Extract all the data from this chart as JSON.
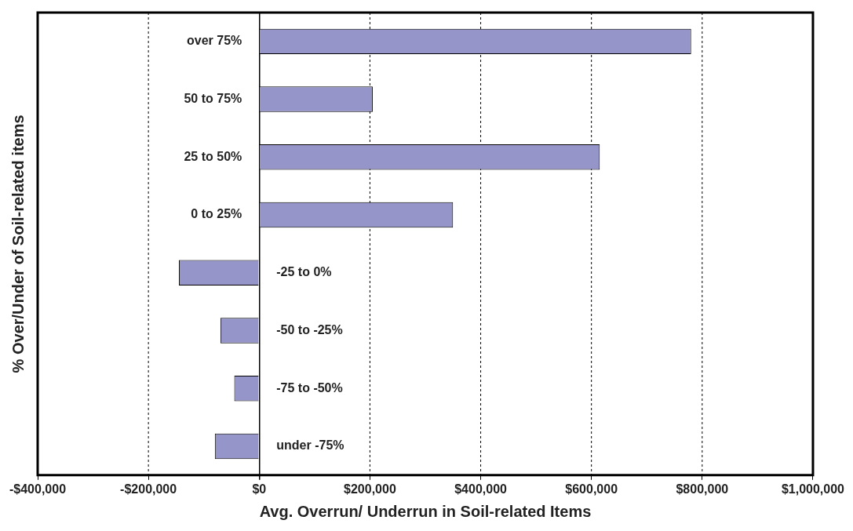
{
  "chart_data": {
    "type": "bar",
    "orientation": "horizontal",
    "xlabel": "Avg. Overrun/ Underrun in Soil-related Items",
    "ylabel": "% Over/Under of Soil-related items",
    "categories": [
      "over 75%",
      "50 to 75%",
      "25 to 50%",
      "0 to 25%",
      "-25 to 0%",
      "-50 to -25%",
      "-75 to -50%",
      "under -75%"
    ],
    "values": [
      780000,
      205000,
      615000,
      350000,
      -145000,
      -70000,
      -45000,
      -80000
    ],
    "color": "#9595c9",
    "xlim": [
      -400000,
      1000000
    ],
    "xticks": [
      {
        "value": -400000,
        "label": "-$400,000"
      },
      {
        "value": -200000,
        "label": "-$200,000"
      },
      {
        "value": 0,
        "label": "$0"
      },
      {
        "value": 200000,
        "label": "$200,000"
      },
      {
        "value": 400000,
        "label": "$400,000"
      },
      {
        "value": 600000,
        "label": "$600,000"
      },
      {
        "value": 800000,
        "label": "$800,000"
      },
      {
        "value": 1000000,
        "label": "$1,000,000"
      }
    ],
    "grid": "x",
    "legend": false
  }
}
